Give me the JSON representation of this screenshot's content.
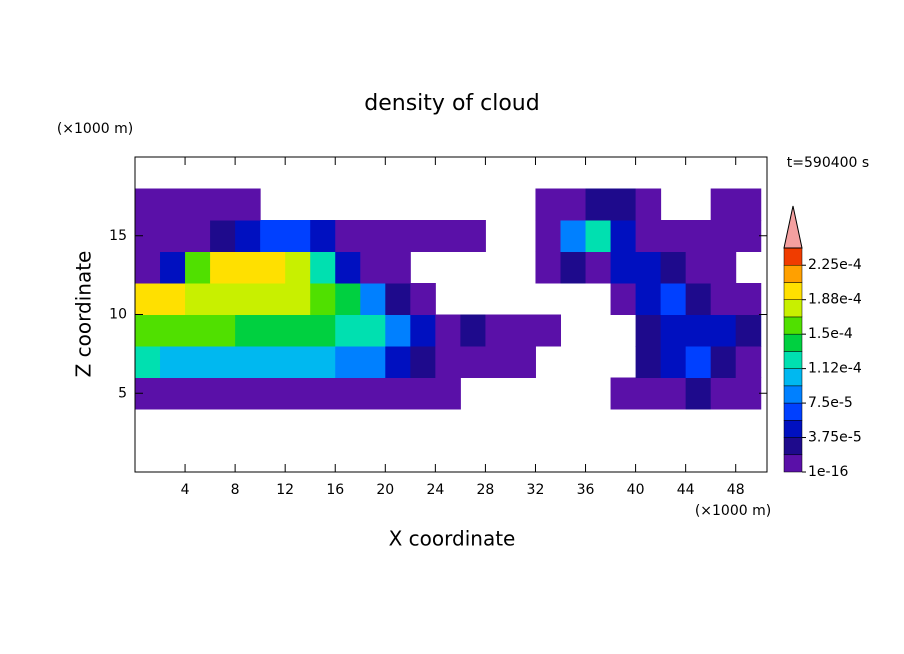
{
  "chart_data": {
    "type": "contour",
    "title": "density of cloud",
    "x_label": "X coordinate",
    "y_label": "Z coordinate",
    "x_unit": "(×1000 m)",
    "y_unit": "(×1000 m)",
    "time_label": "t=590400 s",
    "xlim": [
      0,
      50.5
    ],
    "ylim": [
      0,
      20
    ],
    "xticks": [
      4,
      8,
      12,
      16,
      20,
      24,
      28,
      32,
      36,
      40,
      44,
      48
    ],
    "yticks": [
      5,
      10,
      15
    ],
    "x": [
      1,
      3,
      5,
      7,
      9,
      11,
      13,
      15,
      17,
      19,
      21,
      23,
      25,
      27,
      29,
      31,
      33,
      35,
      37,
      39,
      41,
      43,
      45,
      47,
      49
    ],
    "y": [
      1,
      3,
      5,
      7,
      9,
      11,
      13,
      15,
      17,
      19
    ],
    "z": [
      [
        null,
        null,
        null,
        null,
        null,
        null,
        null,
        null,
        null,
        null,
        null,
        null,
        null,
        null,
        null,
        null,
        null,
        null,
        null,
        null,
        null,
        null,
        null,
        null,
        null
      ],
      [
        null,
        null,
        null,
        null,
        null,
        null,
        null,
        null,
        null,
        null,
        null,
        null,
        null,
        null,
        null,
        null,
        null,
        null,
        null,
        null,
        null,
        null,
        null,
        null,
        null
      ],
      [
        1e-05,
        1e-05,
        1e-05,
        1e-05,
        1e-05,
        1e-05,
        1e-05,
        1e-05,
        1e-05,
        1e-05,
        1e-05,
        5e-06,
        5e-06,
        null,
        null,
        null,
        null,
        null,
        null,
        5e-06,
        5e-06,
        1e-05,
        3e-05,
        5e-06,
        5e-06
      ],
      [
        0.00012,
        0.00011,
        0.0001,
        0.0001,
        0.0001,
        0.0001,
        0.0001,
        0.0001,
        9e-05,
        8e-05,
        4e-05,
        2e-05,
        1e-05,
        1e-05,
        5e-06,
        5e-06,
        null,
        null,
        null,
        null,
        3e-05,
        4e-05,
        6e-05,
        2e-05,
        5e-06
      ],
      [
        0.00016,
        0.00015,
        0.00015,
        0.00015,
        0.00014,
        0.00014,
        0.00014,
        0.00014,
        0.00013,
        0.00012,
        9e-05,
        4e-05,
        1e-05,
        2e-05,
        1e-05,
        1e-05,
        1e-05,
        null,
        null,
        null,
        3e-05,
        4e-05,
        5e-05,
        4e-05,
        2e-05
      ],
      [
        0.00019,
        0.00019,
        0.00018,
        0.00018,
        0.00018,
        0.00017,
        0.00017,
        0.00016,
        0.00014,
        8e-05,
        2e-05,
        5e-06,
        null,
        null,
        null,
        null,
        null,
        null,
        null,
        1e-05,
        5e-05,
        6e-05,
        2e-05,
        1e-05,
        1e-05
      ],
      [
        5e-06,
        5e-05,
        0.00015,
        0.00019,
        0.0002,
        0.00019,
        0.00017,
        0.00012,
        5e-05,
        1e-05,
        5e-06,
        null,
        null,
        null,
        null,
        null,
        5e-06,
        2e-05,
        1e-05,
        4e-05,
        5e-05,
        2e-05,
        5e-06,
        5e-06,
        null
      ],
      [
        5e-06,
        5e-06,
        1e-05,
        2e-05,
        4e-05,
        6e-05,
        7e-05,
        5e-05,
        1e-05,
        5e-06,
        5e-06,
        5e-06,
        5e-06,
        5e-06,
        null,
        null,
        5e-06,
        8e-05,
        0.00012,
        5e-05,
        1e-05,
        5e-06,
        5e-06,
        5e-06,
        5e-06
      ],
      [
        5e-06,
        5e-06,
        5e-06,
        5e-06,
        5e-06,
        null,
        null,
        null,
        null,
        null,
        null,
        null,
        null,
        null,
        null,
        null,
        5e-06,
        5e-06,
        3e-05,
        2e-05,
        5e-06,
        null,
        null,
        5e-06,
        5e-06
      ],
      [
        null,
        null,
        null,
        null,
        null,
        null,
        null,
        null,
        null,
        null,
        null,
        null,
        null,
        null,
        null,
        null,
        null,
        null,
        null,
        null,
        null,
        null,
        null,
        null,
        null
      ]
    ],
    "levels": [
      1e-16,
      1.875e-05,
      3.75e-05,
      5.625e-05,
      7.5e-05,
      9.375e-05,
      0.0001125,
      0.00013125,
      0.00015,
      0.00016875,
      0.0001875,
      0.00020625,
      0.000225,
      0.00024375
    ],
    "colors": [
      "#5a10a8",
      "#1e0a8c",
      "#0010c0",
      "#0040ff",
      "#0080ff",
      "#00b8f0",
      "#00e0b0",
      "#00d040",
      "#50e000",
      "#c8f000",
      "#ffe000",
      "#ffa000",
      "#f03c00"
    ],
    "over_color": "#f4a0a0",
    "colorbar_ticks": [
      {
        "value": 1e-16,
        "label": "1e-16"
      },
      {
        "value": 3.75e-05,
        "label": "3.75e-5"
      },
      {
        "value": 7.5e-05,
        "label": "7.5e-5"
      },
      {
        "value": 0.0001125,
        "label": "1.12e-4"
      },
      {
        "value": 0.00015,
        "label": "1.5e-4"
      },
      {
        "value": 0.0001875,
        "label": "1.88e-4"
      },
      {
        "value": 0.000225,
        "label": "2.25e-4"
      }
    ]
  }
}
